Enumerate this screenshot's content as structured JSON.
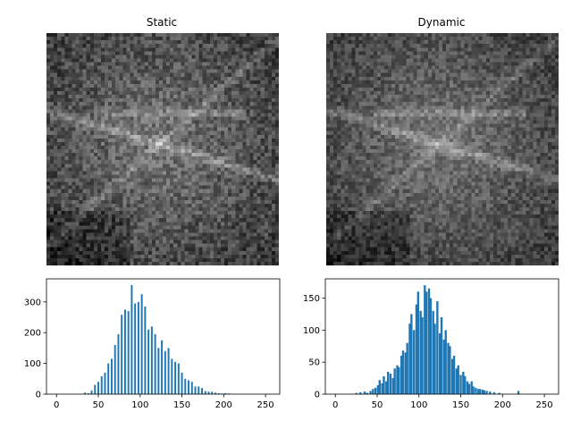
{
  "chart_data": [
    {
      "type": "heatmap",
      "title": "Static",
      "colormap": "gray",
      "axis": "off",
      "description_rows": 64,
      "description_cols": 64
    },
    {
      "type": "heatmap",
      "title": "Dynamic",
      "colormap": "gray",
      "axis": "off",
      "description_rows": 64,
      "description_cols": 64
    },
    {
      "type": "bar",
      "title": "",
      "color": "#1f77b4",
      "xlim": [
        -12,
        267
      ],
      "ylim": [
        0,
        375
      ],
      "xticks": [
        0,
        50,
        100,
        150,
        200,
        250
      ],
      "yticks": [
        0,
        100,
        200,
        300
      ],
      "bin_width": 2.1,
      "x": [
        34,
        38,
        42,
        46,
        50,
        54,
        58,
        62,
        66,
        70,
        74,
        78,
        82,
        86,
        90,
        94,
        98,
        102,
        106,
        110,
        114,
        118,
        122,
        126,
        130,
        134,
        138,
        142,
        146,
        150,
        154,
        158,
        162,
        166,
        170,
        174,
        178,
        182,
        186,
        190,
        194,
        198,
        202,
        206,
        210
      ],
      "values": [
        5,
        3,
        12,
        30,
        40,
        58,
        70,
        100,
        115,
        160,
        195,
        258,
        275,
        270,
        355,
        295,
        300,
        325,
        285,
        210,
        220,
        195,
        150,
        175,
        140,
        150,
        115,
        105,
        100,
        70,
        50,
        45,
        40,
        25,
        25,
        20,
        10,
        8,
        8,
        5,
        3,
        2,
        3,
        2,
        1
      ]
    },
    {
      "type": "bar",
      "title": "",
      "color": "#1f77b4",
      "xlim": [
        -12,
        267
      ],
      "ylim": [
        0,
        180
      ],
      "xticks": [
        0,
        50,
        100,
        150,
        200,
        250
      ],
      "yticks": [
        0,
        50,
        100,
        150
      ],
      "bin_width": 2.55,
      "x": [
        25,
        30,
        35,
        38,
        42,
        45,
        48,
        51,
        53,
        56,
        58,
        61,
        63,
        66,
        69,
        71,
        74,
        76,
        79,
        81,
        84,
        86,
        89,
        91,
        94,
        97,
        99,
        102,
        104,
        107,
        109,
        112,
        114,
        117,
        119,
        122,
        125,
        127,
        130,
        132,
        135,
        137,
        140,
        142,
        145,
        147,
        150,
        153,
        155,
        158,
        160,
        163,
        165,
        168,
        171,
        173,
        176,
        178,
        181,
        185,
        190,
        196,
        219
      ],
      "values": [
        2,
        3,
        4,
        2,
        5,
        8,
        10,
        14,
        22,
        17,
        28,
        20,
        35,
        32,
        25,
        40,
        45,
        42,
        60,
        68,
        65,
        80,
        110,
        125,
        100,
        140,
        160,
        130,
        120,
        170,
        160,
        165,
        150,
        130,
        110,
        145,
        95,
        120,
        85,
        100,
        80,
        75,
        55,
        60,
        40,
        45,
        30,
        35,
        28,
        20,
        16,
        20,
        12,
        10,
        8,
        8,
        7,
        6,
        5,
        4,
        3,
        2,
        5
      ]
    }
  ]
}
